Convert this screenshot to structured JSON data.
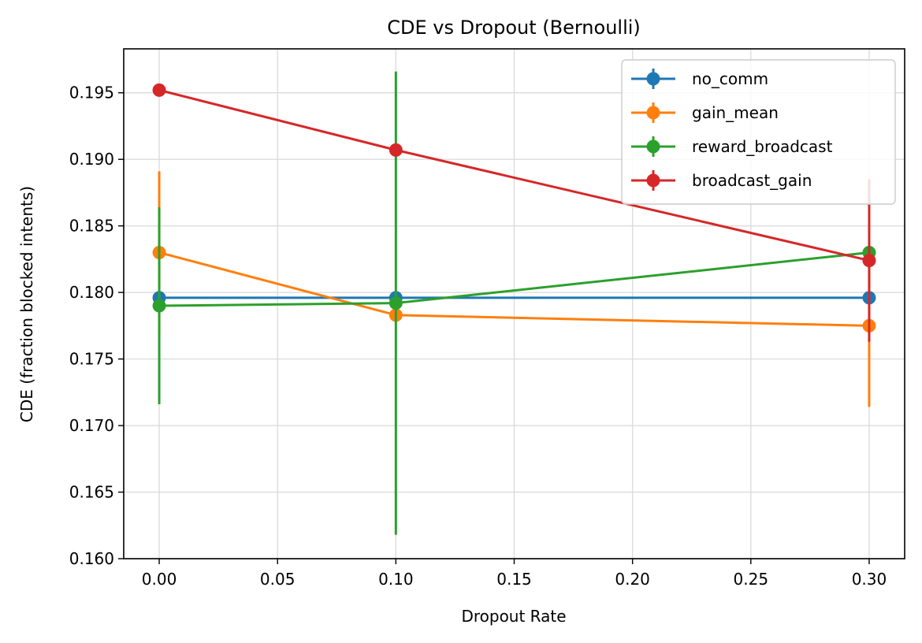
{
  "chart_data": {
    "type": "line",
    "title": "CDE vs Dropout (Bernoulli)",
    "xlabel": "Dropout Rate",
    "ylabel": "CDE (fraction blocked intents)",
    "xlim": [
      -0.015,
      0.315
    ],
    "ylim": [
      0.16,
      0.1983
    ],
    "xticks": [
      0.0,
      0.05,
      0.1,
      0.15,
      0.2,
      0.25,
      0.3
    ],
    "xtick_labels": [
      "0.00",
      "0.05",
      "0.10",
      "0.15",
      "0.20",
      "0.25",
      "0.30"
    ],
    "yticks": [
      0.16,
      0.165,
      0.17,
      0.175,
      0.18,
      0.185,
      0.19,
      0.195
    ],
    "ytick_labels": [
      "0.160",
      "0.165",
      "0.170",
      "0.175",
      "0.180",
      "0.185",
      "0.190",
      "0.195"
    ],
    "grid": true,
    "legend_position": "top-right",
    "x": [
      0.0,
      0.1,
      0.3
    ],
    "series": [
      {
        "name": "no_comm",
        "color": "#1f77b4",
        "values": [
          0.1796,
          0.1796,
          0.1796
        ],
        "errors": [
          0.0,
          0.0,
          0.0
        ]
      },
      {
        "name": "gain_mean",
        "color": "#ff7f0e",
        "values": [
          0.183,
          0.1783,
          0.1775
        ],
        "errors": [
          0.0061,
          0.0,
          0.0061
        ]
      },
      {
        "name": "reward_broadcast",
        "color": "#2ca02c",
        "values": [
          0.179,
          0.1792,
          0.183
        ],
        "errors": [
          0.0074,
          0.0174,
          0.0
        ]
      },
      {
        "name": "broadcast_gain",
        "color": "#d62728",
        "values": [
          0.1952,
          0.1907,
          0.1824
        ],
        "errors": [
          0.0004,
          0.0,
          0.0061
        ]
      }
    ]
  }
}
